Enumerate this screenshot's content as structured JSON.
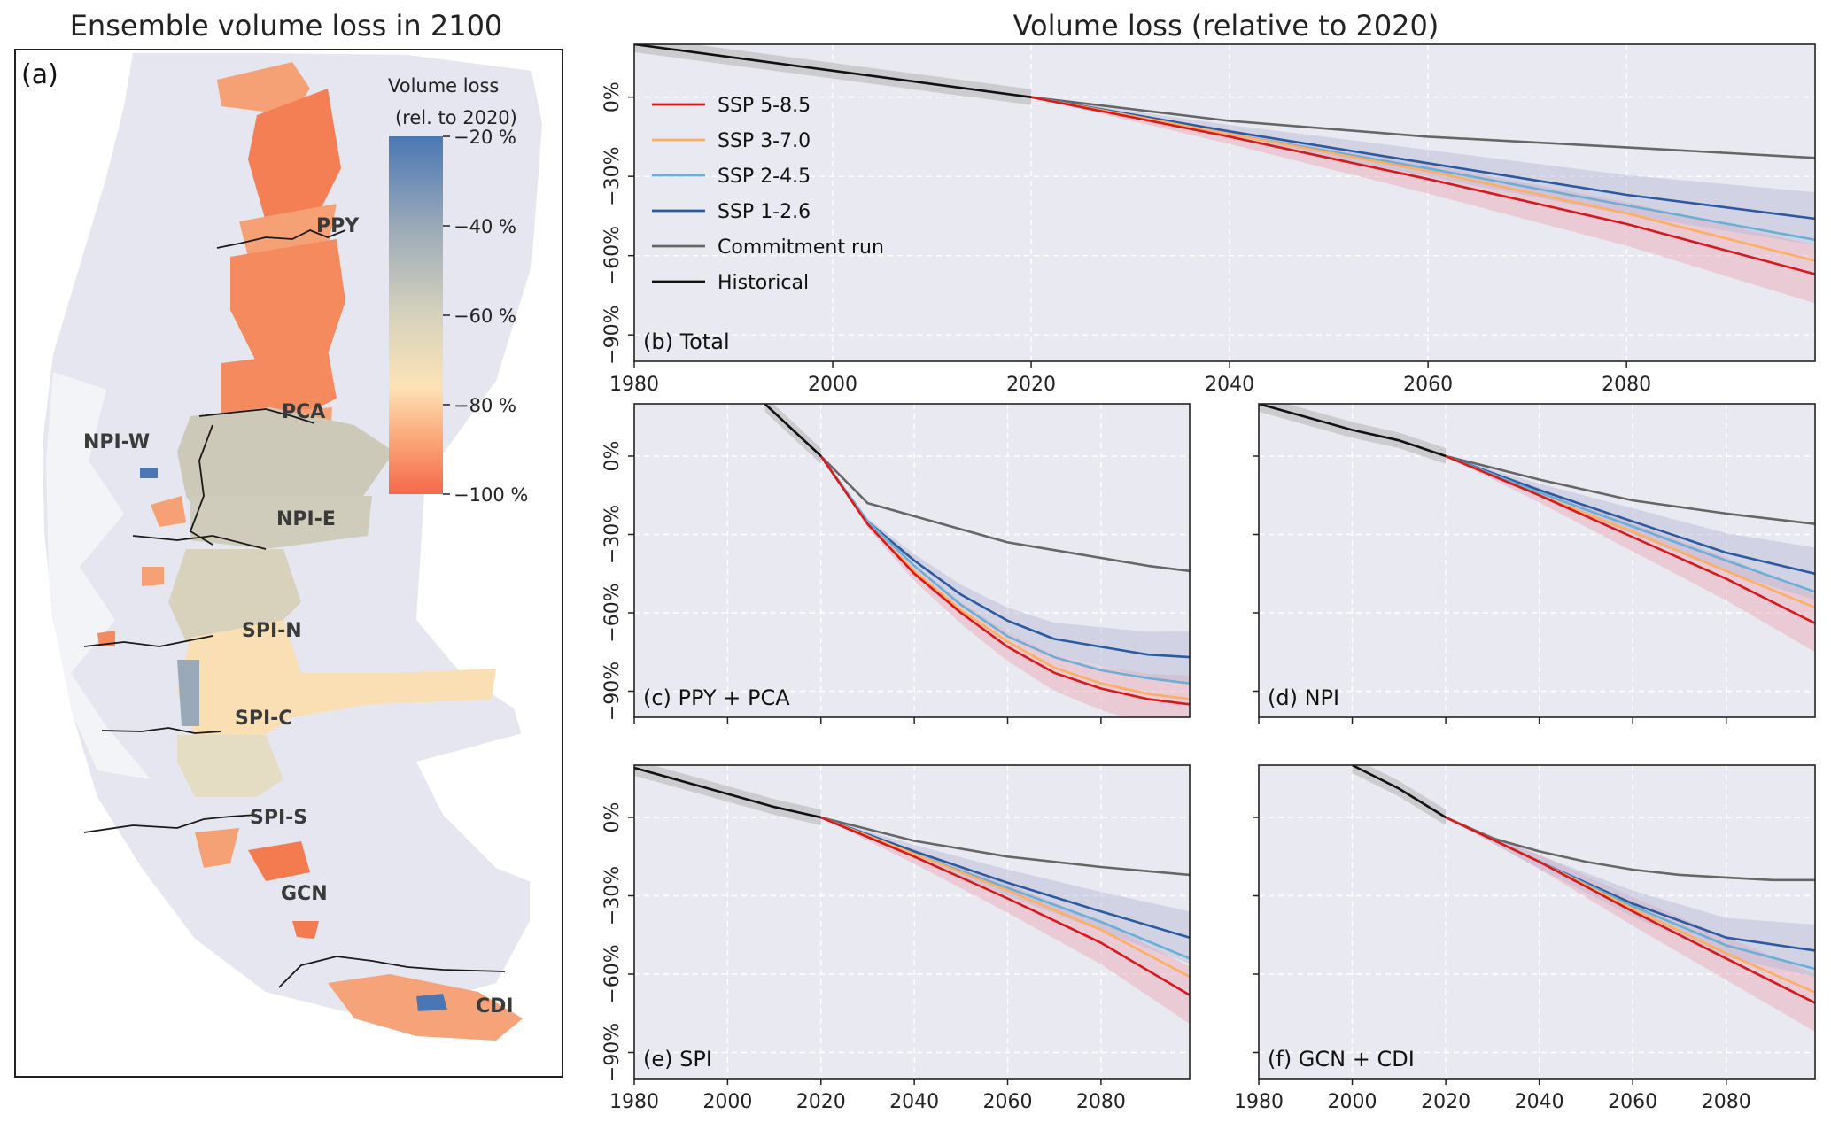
{
  "map_panel": {
    "title": "Ensemble volume loss in 2100",
    "panel_label": "(a)",
    "colorbar": {
      "title_line1": "Volume loss",
      "title_line2": "(rel. to 2020)",
      "ticks": [
        "−20 %",
        "−40 %",
        "−60 %",
        "−80 %",
        "−100 %"
      ],
      "colors": [
        "#4a77b4",
        "#9aa9b8",
        "#d6d2bd",
        "#fce3b6",
        "#fba577",
        "#f4694a"
      ]
    },
    "regions": [
      {
        "name": "PPY",
        "color": "#f48a5e"
      },
      {
        "name": "PCA",
        "color": "#f6a175"
      },
      {
        "name": "NPI-W",
        "color": "#d0ccbc"
      },
      {
        "name": "NPI-E",
        "color": "#cdc9b8"
      },
      {
        "name": "SPI-N",
        "color": "#d8d2bd"
      },
      {
        "name": "SPI-C",
        "color": "#fbdfb4"
      },
      {
        "name": "SPI-S",
        "color": "#e5ddc3"
      },
      {
        "name": "GCN",
        "color": "#f47a50"
      },
      {
        "name": "CDI",
        "color": "#f6a37a"
      }
    ]
  },
  "right_title": "Volume loss (relative to 2020)",
  "legend": [
    {
      "label": "SSP 5-8.5",
      "color": "#d7191c"
    },
    {
      "label": "SSP 3-7.0",
      "color": "#fdae61"
    },
    {
      "label": "SSP 2-4.5",
      "color": "#6baed6"
    },
    {
      "label": "SSP 1-2.6",
      "color": "#2c5aa0"
    },
    {
      "label": "Commitment run",
      "color": "#666666"
    },
    {
      "label": "Historical",
      "color": "#111111"
    }
  ],
  "chart_data": [
    {
      "panel": "(b) Total",
      "type": "line",
      "xlim": [
        1980,
        2099
      ],
      "ylim": [
        -100,
        20
      ],
      "xticks": [
        "1980",
        "2000",
        "2020",
        "2040",
        "2060",
        "2080"
      ],
      "yticks": [
        "0%",
        "−30%",
        "−60%",
        "−90%"
      ],
      "historical": {
        "x": [
          1980,
          1990,
          2000,
          2010,
          2020
        ],
        "y": [
          20,
          15,
          10,
          5,
          0
        ]
      },
      "series": [
        {
          "name": "Commitment run",
          "x": [
            2020,
            2040,
            2060,
            2080,
            2099
          ],
          "y": [
            0,
            -9,
            -15,
            -19,
            -23
          ]
        },
        {
          "name": "SSP 1-2.6",
          "x": [
            2020,
            2040,
            2060,
            2080,
            2099
          ],
          "y": [
            0,
            -13,
            -25,
            -37,
            -46
          ]
        },
        {
          "name": "SSP 2-4.5",
          "x": [
            2020,
            2040,
            2060,
            2080,
            2099
          ],
          "y": [
            0,
            -14,
            -27,
            -41,
            -54
          ]
        },
        {
          "name": "SSP 3-7.0",
          "x": [
            2020,
            2040,
            2060,
            2080,
            2099
          ],
          "y": [
            0,
            -14,
            -28,
            -44,
            -62
          ]
        },
        {
          "name": "SSP 5-8.5",
          "x": [
            2020,
            2040,
            2060,
            2080,
            2099
          ],
          "y": [
            0,
            -15,
            -31,
            -48,
            -67
          ]
        }
      ]
    },
    {
      "panel": "(c) PPY + PCA",
      "type": "line",
      "xlim": [
        1980,
        2099
      ],
      "ylim": [
        -100,
        20
      ],
      "xticks": [],
      "yticks": [
        "0%",
        "−30%",
        "−60%",
        "−90%"
      ],
      "historical": {
        "x": [
          2008,
          2014,
          2020
        ],
        "y": [
          20,
          10,
          0
        ]
      },
      "series": [
        {
          "name": "Commitment run",
          "x": [
            2020,
            2030,
            2040,
            2050,
            2060,
            2070,
            2080,
            2090,
            2099
          ],
          "y": [
            0,
            -18,
            -23,
            -28,
            -33,
            -36,
            -39,
            -42,
            -44
          ]
        },
        {
          "name": "SSP 1-2.6",
          "x": [
            2020,
            2030,
            2040,
            2050,
            2060,
            2070,
            2080,
            2090,
            2099
          ],
          "y": [
            0,
            -25,
            -40,
            -53,
            -63,
            -70,
            -73,
            -76,
            -77
          ]
        },
        {
          "name": "SSP 2-4.5",
          "x": [
            2020,
            2030,
            2040,
            2050,
            2060,
            2070,
            2080,
            2090,
            2099
          ],
          "y": [
            0,
            -25,
            -42,
            -57,
            -69,
            -77,
            -82,
            -85,
            -87
          ]
        },
        {
          "name": "SSP 3-7.0",
          "x": [
            2020,
            2030,
            2040,
            2050,
            2060,
            2070,
            2080,
            2090,
            2099
          ],
          "y": [
            0,
            -26,
            -44,
            -59,
            -71,
            -81,
            -87,
            -91,
            -93
          ]
        },
        {
          "name": "SSP 5-8.5",
          "x": [
            2020,
            2030,
            2040,
            2050,
            2060,
            2070,
            2080,
            2090,
            2099
          ],
          "y": [
            0,
            -26,
            -45,
            -60,
            -73,
            -83,
            -89,
            -93,
            -95
          ]
        }
      ]
    },
    {
      "panel": "(d) NPI",
      "type": "line",
      "xlim": [
        1980,
        2099
      ],
      "ylim": [
        -100,
        20
      ],
      "xticks": [],
      "yticks": [
        "",
        "",
        "",
        ""
      ],
      "historical": {
        "x": [
          1980,
          1990,
          2000,
          2010,
          2020
        ],
        "y": [
          20,
          15,
          10,
          6,
          0
        ]
      },
      "series": [
        {
          "name": "Commitment run",
          "x": [
            2020,
            2040,
            2060,
            2080,
            2099
          ],
          "y": [
            0,
            -9,
            -17,
            -22,
            -26
          ]
        },
        {
          "name": "SSP 1-2.6",
          "x": [
            2020,
            2040,
            2060,
            2080,
            2099
          ],
          "y": [
            0,
            -13,
            -25,
            -37,
            -45
          ]
        },
        {
          "name": "SSP 2-4.5",
          "x": [
            2020,
            2040,
            2060,
            2080,
            2099
          ],
          "y": [
            0,
            -14,
            -27,
            -40,
            -52
          ]
        },
        {
          "name": "SSP 3-7.0",
          "x": [
            2020,
            2040,
            2060,
            2080,
            2099
          ],
          "y": [
            0,
            -15,
            -29,
            -44,
            -58
          ]
        },
        {
          "name": "SSP 5-8.5",
          "x": [
            2020,
            2040,
            2060,
            2080,
            2099
          ],
          "y": [
            0,
            -15,
            -31,
            -47,
            -64
          ]
        }
      ]
    },
    {
      "panel": "(e) SPI",
      "type": "line",
      "xlim": [
        1980,
        2099
      ],
      "ylim": [
        -100,
        20
      ],
      "xticks": [
        "1980",
        "2000",
        "2020",
        "2040",
        "2060",
        "2080"
      ],
      "yticks": [
        "0%",
        "−30%",
        "−60%",
        "−90%"
      ],
      "historical": {
        "x": [
          1980,
          1990,
          2000,
          2010,
          2020
        ],
        "y": [
          19,
          14,
          9,
          4,
          0
        ]
      },
      "series": [
        {
          "name": "Commitment run",
          "x": [
            2020,
            2040,
            2060,
            2080,
            2099
          ],
          "y": [
            0,
            -9,
            -15,
            -19,
            -22
          ]
        },
        {
          "name": "SSP 1-2.6",
          "x": [
            2020,
            2040,
            2060,
            2080,
            2099
          ],
          "y": [
            0,
            -13,
            -25,
            -36,
            -46
          ]
        },
        {
          "name": "SSP 2-4.5",
          "x": [
            2020,
            2040,
            2060,
            2080,
            2099
          ],
          "y": [
            0,
            -14,
            -27,
            -40,
            -54
          ]
        },
        {
          "name": "SSP 3-7.0",
          "x": [
            2020,
            2040,
            2060,
            2080,
            2099
          ],
          "y": [
            0,
            -14,
            -28,
            -43,
            -61
          ]
        },
        {
          "name": "SSP 5-8.5",
          "x": [
            2020,
            2040,
            2060,
            2080,
            2099
          ],
          "y": [
            0,
            -15,
            -31,
            -48,
            -68
          ]
        }
      ]
    },
    {
      "panel": "(f) GCN + CDI",
      "type": "line",
      "xlim": [
        1980,
        2099
      ],
      "ylim": [
        -100,
        20
      ],
      "xticks": [
        "1980",
        "2000",
        "2020",
        "2040",
        "2060",
        "2080"
      ],
      "yticks": [
        "",
        "",
        "",
        ""
      ],
      "historical": {
        "x": [
          2000,
          2010,
          2020
        ],
        "y": [
          20,
          11,
          0
        ]
      },
      "series": [
        {
          "name": "Commitment run",
          "x": [
            2020,
            2030,
            2040,
            2050,
            2060,
            2070,
            2080,
            2090,
            2099
          ],
          "y": [
            0,
            -8,
            -13,
            -17,
            -20,
            -22,
            -23,
            -24,
            -24
          ]
        },
        {
          "name": "SSP 1-2.6",
          "x": [
            2020,
            2040,
            2060,
            2080,
            2099
          ],
          "y": [
            0,
            -17,
            -33,
            -46,
            -51
          ]
        },
        {
          "name": "SSP 2-4.5",
          "x": [
            2020,
            2040,
            2060,
            2080,
            2099
          ],
          "y": [
            0,
            -17,
            -34,
            -49,
            -58
          ]
        },
        {
          "name": "SSP 3-7.0",
          "x": [
            2020,
            2040,
            2060,
            2080,
            2099
          ],
          "y": [
            0,
            -17,
            -35,
            -52,
            -67
          ]
        },
        {
          "name": "SSP 5-8.5",
          "x": [
            2020,
            2040,
            2060,
            2080,
            2099
          ],
          "y": [
            0,
            -17,
            -36,
            -54,
            -71
          ]
        }
      ]
    }
  ]
}
